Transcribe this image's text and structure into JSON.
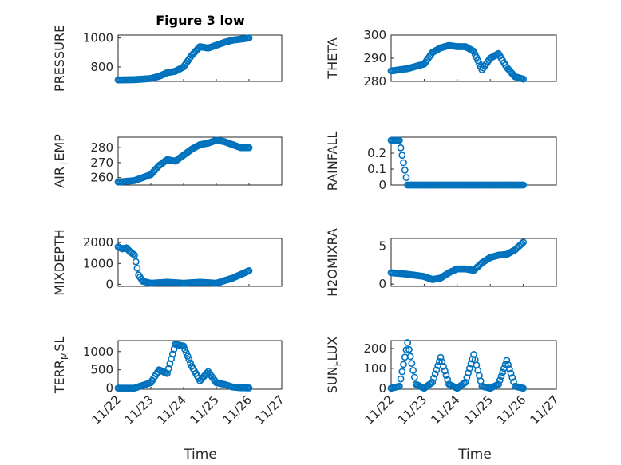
{
  "colors": {
    "marker": "#0072BD",
    "axis": "#262626",
    "grid": "#c8c8c8"
  },
  "chart_data": [
    {
      "type": "scatter",
      "title": "Figure 3 low",
      "ylabel": "PRESSURE",
      "xlim": [
        "11/22",
        "11/27"
      ],
      "ylim": [
        700,
        1020
      ],
      "yticks": [
        800,
        1000
      ],
      "grid": true,
      "x": [
        "11/22",
        "11/22 12:00",
        "11/23",
        "11/23 06:00",
        "11/23 12:00",
        "11/23 18:00",
        "11/24",
        "11/24 06:00",
        "11/24 12:00",
        "11/24 18:00",
        "11/25",
        "11/25 06:00",
        "11/25 12:00",
        "11/25 18:00",
        "11/26"
      ],
      "y": [
        710,
        712,
        720,
        735,
        760,
        770,
        800,
        880,
        940,
        930,
        950,
        970,
        985,
        992,
        1000
      ]
    },
    {
      "type": "scatter",
      "ylabel": "THETA",
      "xlim": [
        "11/22",
        "11/27"
      ],
      "ylim": [
        280,
        300
      ],
      "yticks": [
        280,
        290,
        300
      ],
      "grid": true,
      "x": [
        "11/22",
        "11/22 12:00",
        "11/23",
        "11/23 06:00",
        "11/23 12:00",
        "11/23 18:00",
        "11/24",
        "11/24 06:00",
        "11/24 12:00",
        "11/24 18:00",
        "11/25",
        "11/25 06:00",
        "11/25 12:00",
        "11/25 18:00",
        "11/26"
      ],
      "y": [
        284.5,
        285.5,
        287.5,
        292.5,
        294.5,
        295.5,
        295,
        295,
        293,
        285,
        290,
        292,
        286,
        282,
        281
      ]
    },
    {
      "type": "scatter",
      "ylabel": "AIR_TEMP",
      "xlim": [
        "11/22",
        "11/27"
      ],
      "ylim": [
        255,
        287
      ],
      "yticks": [
        260,
        270,
        280
      ],
      "grid": true,
      "x": [
        "11/22",
        "11/22 12:00",
        "11/23",
        "11/23 06:00",
        "11/23 12:00",
        "11/23 18:00",
        "11/24",
        "11/24 06:00",
        "11/24 12:00",
        "11/24 18:00",
        "11/25",
        "11/25 06:00",
        "11/25 12:00",
        "11/25 18:00",
        "11/26"
      ],
      "y": [
        257,
        258,
        262,
        268,
        272,
        271,
        275,
        279,
        282,
        283,
        285,
        284,
        282,
        280,
        280
      ]
    },
    {
      "type": "scatter",
      "ylabel": "RAINFALL",
      "xlim": [
        "11/22",
        "11/27"
      ],
      "ylim": [
        0,
        0.3
      ],
      "yticks": [
        0,
        0.1,
        0.2
      ],
      "grid": true,
      "x": [
        "11/22",
        "11/22 03:00",
        "11/22 06:00",
        "11/22 12:00",
        "11/23",
        "11/23 12:00",
        "11/24",
        "11/24 12:00",
        "11/25",
        "11/25 12:00",
        "11/26"
      ],
      "y": [
        0.28,
        0.28,
        0.28,
        0,
        0,
        0,
        0,
        0,
        0,
        0,
        0
      ]
    },
    {
      "type": "scatter",
      "ylabel": "MIXDEPTH",
      "xlim": [
        "11/22",
        "11/27"
      ],
      "ylim": [
        -100,
        2200
      ],
      "yticks": [
        0,
        1000,
        2000
      ],
      "grid": true,
      "x": [
        "11/22",
        "11/22 03:00",
        "11/22 06:00",
        "11/22 09:00",
        "11/22 12:00",
        "11/22 15:00",
        "11/22 18:00",
        "11/23",
        "11/23 12:00",
        "11/24",
        "11/24 12:00",
        "11/25",
        "11/25 12:00",
        "11/26"
      ],
      "y": [
        1800,
        1700,
        1750,
        1550,
        1400,
        450,
        150,
        50,
        100,
        50,
        100,
        50,
        300,
        650
      ]
    },
    {
      "type": "scatter",
      "ylabel": "H2OMIXRA",
      "xlim": [
        "11/22",
        "11/27"
      ],
      "ylim": [
        -0.3,
        6
      ],
      "yticks": [
        0,
        5
      ],
      "grid": true,
      "x": [
        "11/22",
        "11/22 12:00",
        "11/23",
        "11/23 06:00",
        "11/23 12:00",
        "11/23 18:00",
        "11/24",
        "11/24 06:00",
        "11/24 12:00",
        "11/24 18:00",
        "11/25",
        "11/25 06:00",
        "11/25 12:00",
        "11/25 18:00",
        "11/26"
      ],
      "y": [
        1.5,
        1.3,
        1.0,
        0.6,
        0.8,
        1.5,
        2.0,
        2.0,
        1.8,
        2.8,
        3.5,
        3.8,
        3.9,
        4.5,
        5.5
      ]
    },
    {
      "type": "scatter",
      "ylabel": "TERR_MSL",
      "xlim": [
        "11/22",
        "11/27"
      ],
      "ylim": [
        -30,
        1300
      ],
      "yticks": [
        0,
        500,
        1000
      ],
      "grid": true,
      "x": [
        "11/22",
        "11/22 12:00",
        "11/23",
        "11/23 06:00",
        "11/23 12:00",
        "11/23 18:00",
        "11/24",
        "11/24 06:00",
        "11/24 12:00",
        "11/24 18:00",
        "11/25",
        "11/25 06:00",
        "11/25 12:00",
        "11/25 18:00",
        "11/26"
      ],
      "y": [
        0,
        0,
        150,
        500,
        400,
        1200,
        1150,
        600,
        200,
        450,
        150,
        100,
        30,
        10,
        5
      ]
    },
    {
      "type": "scatter",
      "ylabel": "SUN_FLUX",
      "xlim": [
        "11/22",
        "11/27"
      ],
      "ylim": [
        -5,
        240
      ],
      "yticks": [
        0,
        100,
        200
      ],
      "grid": true,
      "x": [
        "11/22",
        "11/22 06:00",
        "11/22 12:00",
        "11/22 18:00",
        "11/23",
        "11/23 06:00",
        "11/23 12:00",
        "11/23 18:00",
        "11/24",
        "11/24 06:00",
        "11/24 12:00",
        "11/24 18:00",
        "11/25",
        "11/25 06:00",
        "11/25 12:00",
        "11/25 18:00",
        "11/26"
      ],
      "y": [
        0,
        10,
        230,
        20,
        0,
        30,
        155,
        20,
        0,
        30,
        170,
        10,
        0,
        20,
        140,
        10,
        0
      ]
    }
  ],
  "xaxis": {
    "ticks": [
      "11/22",
      "11/23",
      "11/24",
      "11/25",
      "11/26",
      "11/27"
    ],
    "label": "Time"
  }
}
